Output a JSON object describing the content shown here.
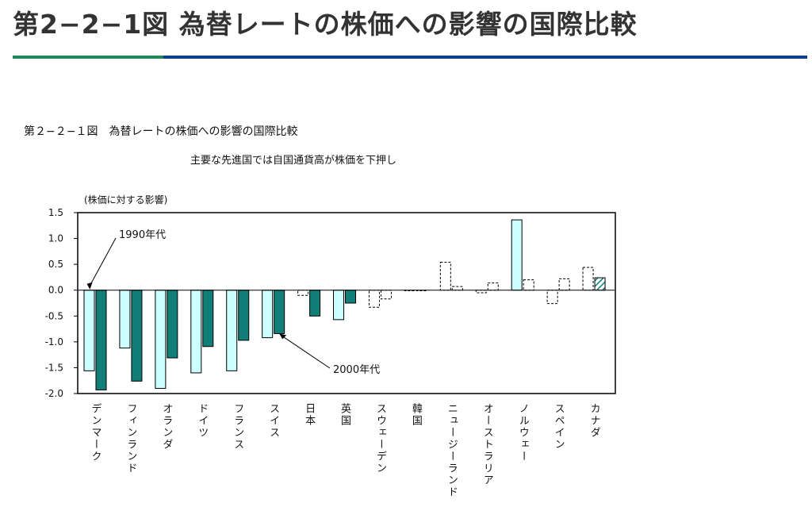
{
  "header": {
    "title": "第2−2−1図 為替レートの株価への影響の国際比較",
    "accent_green": "#1e8a5a",
    "accent_blue": "#0d3f8c"
  },
  "chart_data": {
    "type": "bar",
    "title": "第２−２−１図　為替レートの株価への影響の国際比較",
    "subtitle": "主要な先進国では自国通貨高が株価を下押し",
    "ylabel": "(株価に対する影響)",
    "xlabel": "",
    "ylim": [
      -2.0,
      1.5
    ],
    "yticks": [
      "1.5",
      "1.0",
      "0.5",
      "0.0",
      "-0.5",
      "-1.0",
      "-1.5",
      "-2.0"
    ],
    "grid": false,
    "categories": [
      "デンマーク",
      "フィンランド",
      "オランダ",
      "ドイツ",
      "フランス",
      "スイス",
      "日本",
      "英国",
      "スウェーデン",
      "韓国",
      "ニュージーランド",
      "オーストラリア",
      "ノルウェー",
      "スペイン",
      "カナダ"
    ],
    "series": [
      {
        "name": "1990年代",
        "color": "#ccffff",
        "values": [
          -1.56,
          -1.12,
          -1.9,
          -1.6,
          -1.56,
          -0.92,
          -0.1,
          -0.57,
          -0.33,
          0.0,
          0.54,
          -0.05,
          1.36,
          -0.26,
          0.44
        ],
        "styles": [
          "solid",
          "solid",
          "solid",
          "solid",
          "solid",
          "solid",
          "dashed",
          "solid",
          "dashed",
          "dashed",
          "dashed",
          "dashed",
          "solid",
          "dashed",
          "dashed"
        ]
      },
      {
        "name": "2000年代",
        "color": "#117f77",
        "values": [
          -1.93,
          -1.76,
          -1.31,
          -1.09,
          -0.97,
          -0.84,
          -0.5,
          -0.25,
          -0.17,
          0.0,
          0.07,
          0.14,
          0.2,
          0.22,
          0.24
        ],
        "styles": [
          "solid",
          "solid",
          "solid",
          "solid",
          "solid",
          "solid",
          "solid",
          "solid",
          "dashed",
          "dashed",
          "dashed",
          "dashed",
          "dashed",
          "dashed",
          "hatched"
        ]
      }
    ],
    "annotations": [
      {
        "text": "1990年代",
        "target_series": 0,
        "target_category": 0
      },
      {
        "text": "2000年代",
        "target_series": 1,
        "target_category": 5
      }
    ]
  }
}
